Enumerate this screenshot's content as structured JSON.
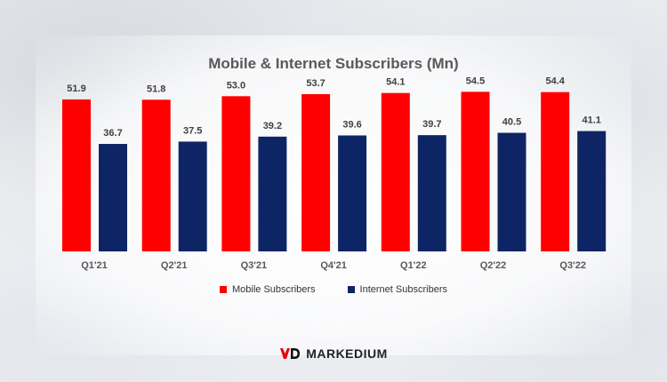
{
  "chart_data": {
    "type": "bar",
    "title": "Mobile & Internet Subscribers (Mn)",
    "categories": [
      "Q1'21",
      "Q2'21",
      "Q3'21",
      "Q4'21",
      "Q1'22",
      "Q2'22",
      "Q3'22"
    ],
    "series": [
      {
        "name": "Mobile Subscribers",
        "color": "#ff0000",
        "values": [
          51.9,
          51.8,
          53.0,
          53.7,
          54.1,
          54.5,
          54.4
        ],
        "labels": [
          "51.9",
          "51.8",
          "53.0",
          "53.7",
          "54.1",
          "54.5",
          "54.4"
        ]
      },
      {
        "name": "Internet Subscribers",
        "color": "#0e2565",
        "values": [
          36.7,
          37.5,
          39.2,
          39.6,
          39.7,
          40.5,
          41.1
        ],
        "labels": [
          "36.7",
          "37.5",
          "39.2",
          "39.6",
          "39.7",
          "40.5",
          "41.1"
        ]
      }
    ],
    "ylim": [
      0,
      60
    ],
    "xlabel": "",
    "ylabel": "",
    "legend": "bottom",
    "grid": false
  },
  "brand": {
    "name": "MARKEDIUM",
    "logo_color": "#e30613"
  }
}
